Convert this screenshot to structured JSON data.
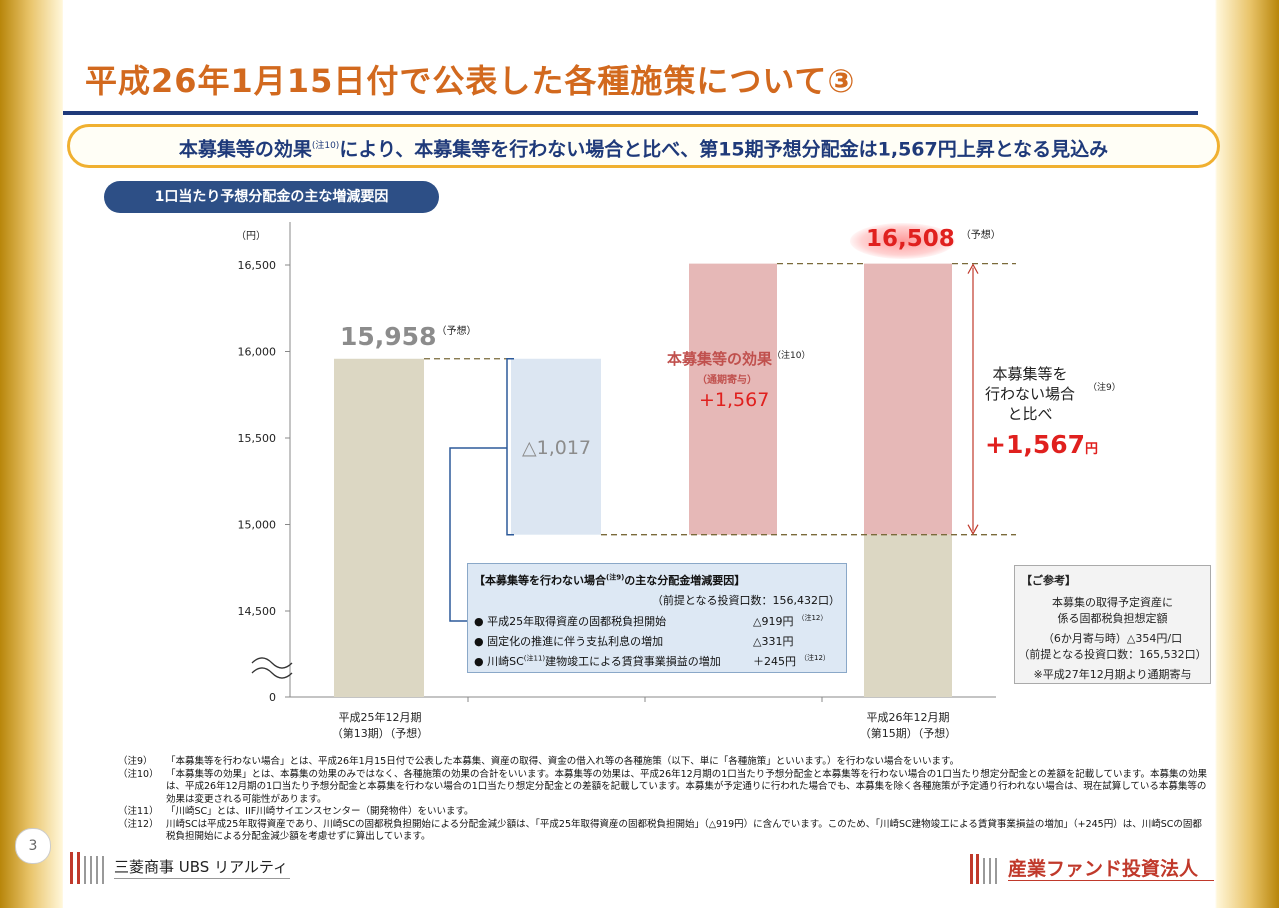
{
  "title": "平成26年1月15日付で公表した各種施策について③",
  "banner": {
    "text_a": "本募集等の効果",
    "note": "(注10)",
    "text_b": "により、本募集等を行わない場合と比べ、第15期予想分配金は1,567円上昇となる見込み"
  },
  "section_pill": "1口当たり予想分配金の主な増減要因",
  "chart_data": {
    "type": "bar",
    "subtype": "waterfall",
    "yunit": "（円）",
    "yticks": [
      {
        "value": 16500,
        "label": "16,500"
      },
      {
        "value": 16000,
        "label": "16,000"
      },
      {
        "value": 15500,
        "label": "15,500"
      },
      {
        "value": 15000,
        "label": "15,000"
      },
      {
        "value": 14500,
        "label": "14,500"
      },
      {
        "value": 0,
        "label": "0"
      }
    ],
    "ylim": [
      14400,
      16700
    ],
    "axis_break": true,
    "categories": [
      "平成25年12月期\n（第13期）（予想）",
      "",
      "",
      "平成26年12月期\n（第15期）（予想）"
    ],
    "category_labels": [
      {
        "line1": "平成25年12月期",
        "line2": "（第13期）（予想）"
      },
      {
        "line1": "平成26年12月期",
        "line2": "（第15期）（予想）"
      }
    ],
    "bars": [
      {
        "name": "第13期",
        "base": 0,
        "top": 15958,
        "color": "#dcd7c3"
      },
      {
        "name": "減少",
        "base": 14941,
        "top": 15958,
        "color": "#dce6f2"
      },
      {
        "name": "本募集等の効果",
        "base": 14941,
        "top": 16508,
        "color": "#e6b8b7"
      },
      {
        "name": "第15期",
        "base": 0,
        "top": 16508,
        "color_top": "#e6b8b7",
        "color_bottom": "#dcd7c3",
        "split": 14941
      }
    ],
    "values": {
      "period13": 15958,
      "decrease": -1017,
      "effect": 1567,
      "period15": 16508,
      "without_offering": 14941
    }
  },
  "labels": {
    "p13_value": "15,958",
    "p13_tag": "（予想）",
    "decrease": "△1,017",
    "effect_title": "本募集等の効果",
    "effect_note": "（注10）",
    "effect_sub": "（通期寄与）",
    "effect_value": "+1,567",
    "p15_value": "16,508",
    "p15_tag": "（予想）",
    "cmp_line1": "本募集等を",
    "cmp_line2": "行わない場合",
    "cmp_line3": "と比べ",
    "cmp_note": "（注9）",
    "cmp_value": "+1,567",
    "cmp_unit": "円"
  },
  "factor_box": {
    "title": "【本募集等を行わない場合",
    "title_note": "(注9)",
    "title_b": "の主な分配金増減要因】",
    "premise": "（前提となる投資口数：156,432口）",
    "rows": [
      {
        "text": "● 平成25年取得資産の固都税負担開始",
        "value": "△919円",
        "note": "（注12）"
      },
      {
        "text": "● 固定化の推進に伴う支払利息の増加",
        "value": "△331円",
        "note": ""
      },
      {
        "text": "● 川崎SC",
        "text_note": "(注11)",
        "text_b": "建物竣工による賃貸事業損益の増加",
        "value": "＋245円",
        "note": "（注12）"
      }
    ]
  },
  "reference": {
    "title": "【ご参考】",
    "line1": "本募集の取得予定資産に",
    "line2": "係る固都税負担想定額",
    "line3": "（6か月寄与時）△354円/口",
    "line4": "（前提となる投資口数：165,532口）",
    "line5": "※平成27年12月期より通期寄与"
  },
  "notes": [
    {
      "key": "（注9）",
      "text": "「本募集等を行わない場合」とは、平成26年1月15日付で公表した本募集、資産の取得、資金の借入れ等の各種施策（以下、単に「各種施策」といいます。）を行わない場合をいいます。"
    },
    {
      "key": "（注10）",
      "text": "「本募集等の効果」とは、本募集の効果のみではなく、各種施策の効果の合計をいいます。本募集等の効果は、平成26年12月期の1口当たり予想分配金と本募集等を行わない場合の1口当たり想定分配金との差額を記載しています。本募集の効果は、平成26年12月期の1口当たり予想分配金と本募集を行わない場合の1口当たり想定分配金との差額を記載しています。本募集が予定通りに行われた場合でも、本募集を除く各種施策が予定通り行われない場合は、現在試算している本募集等の効果は変更される可能性があります。"
    },
    {
      "key": "（注11）",
      "text": "「川崎SC」とは、IIF川崎サイエンスセンター（開発物件）をいいます。"
    },
    {
      "key": "（注12）",
      "text": "川崎SCは平成25年取得資産であり、川崎SCの固都税負担開始による分配金減少額は、「平成25年取得資産の固都税負担開始」（△919円）に含んでいます。このため、「川崎SC建物竣工による賃貸事業損益の増加」（+245円）は、川崎SCの固都税負担開始による分配金減少額を考慮せずに算出しています。"
    }
  ],
  "page_number": "3",
  "logo_left": "三菱商事 UBS リアルティ",
  "logo_right": "産業ファンド投資法人",
  "colors": {
    "title": "#d2691e",
    "navy": "#1f3a7a",
    "banner_border": "#f0b030",
    "red": "#e0201e",
    "effect_red": "#c0504d"
  }
}
